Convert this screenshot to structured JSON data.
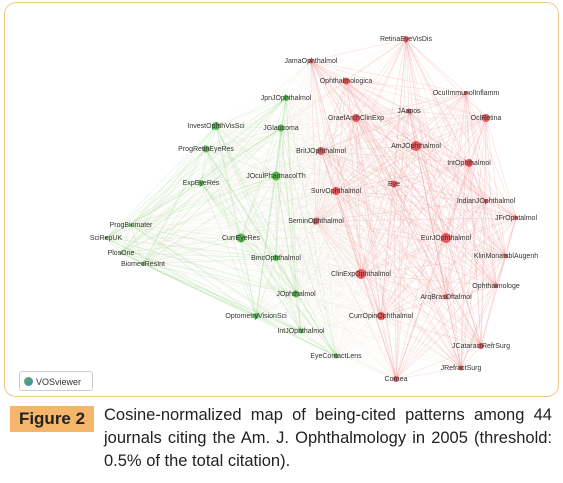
{
  "figure": {
    "clusters": [
      {
        "color": "#e8585c",
        "edge_color": "#f29a9a",
        "nodes": [
          {
            "label": "RetinaEyeVisDis"
          },
          {
            "label": "JamaOphthalmol"
          },
          {
            "label": "Ophthalmologica"
          },
          {
            "label": "OcuIImmunolInflamm"
          },
          {
            "label": "JAapos"
          },
          {
            "label": "GraefArchClinExp"
          },
          {
            "label": "OclRetina"
          },
          {
            "label": "AmJOphthalmol"
          },
          {
            "label": "BritJOphthalmol"
          },
          {
            "label": "IntOphthalmol"
          },
          {
            "label": "SurvOphthalmol"
          },
          {
            "label": "Eye"
          },
          {
            "label": "IndianJOphthalmol"
          },
          {
            "label": "JFrOphtalmol"
          },
          {
            "label": "SeminOphthalmol"
          },
          {
            "label": "EurJOphthalmol"
          },
          {
            "label": "KlinMonatsblAugenh"
          },
          {
            "label": "ClinExpOphthalmol"
          },
          {
            "label": "Ophthalmologe"
          },
          {
            "label": "ArqBrasOftalmol"
          },
          {
            "label": "CurrOpinOphthalmol"
          },
          {
            "label": "JCataractRefrSurg"
          },
          {
            "label": "Cornea"
          },
          {
            "label": "JRefractSurg"
          }
        ]
      },
      {
        "color": "#55b84e",
        "edge_color": "#9fd68f",
        "nodes": [
          {
            "label": "JpnJOphthalmol"
          },
          {
            "label": "InvestOphthVisSci"
          },
          {
            "label": "JGlaucoma"
          },
          {
            "label": "ProgRetinEyeRes"
          },
          {
            "label": "JOculPharmacolTh"
          },
          {
            "label": "ExpEyeRes"
          },
          {
            "label": "ProgBiomater"
          },
          {
            "label": "SciRepUK"
          },
          {
            "label": "CurrEyeRes"
          },
          {
            "label": "BmcOphthalmol"
          },
          {
            "label": "PlosOne"
          },
          {
            "label": "BiomedResInt"
          },
          {
            "label": "JOphthalmol"
          },
          {
            "label": "OptometryVisionSci"
          },
          {
            "label": "IntJOphthalmol"
          },
          {
            "label": "EyeContactLens"
          }
        ]
      }
    ],
    "logo": "VOSviewer",
    "caption_label": "Figure 2",
    "caption": "Cosine-normalized map of being-cited patterns among 44 journals citing the Am. J. Ophthalmology in 2005 (threshold: 0.5% of the total citation)."
  }
}
